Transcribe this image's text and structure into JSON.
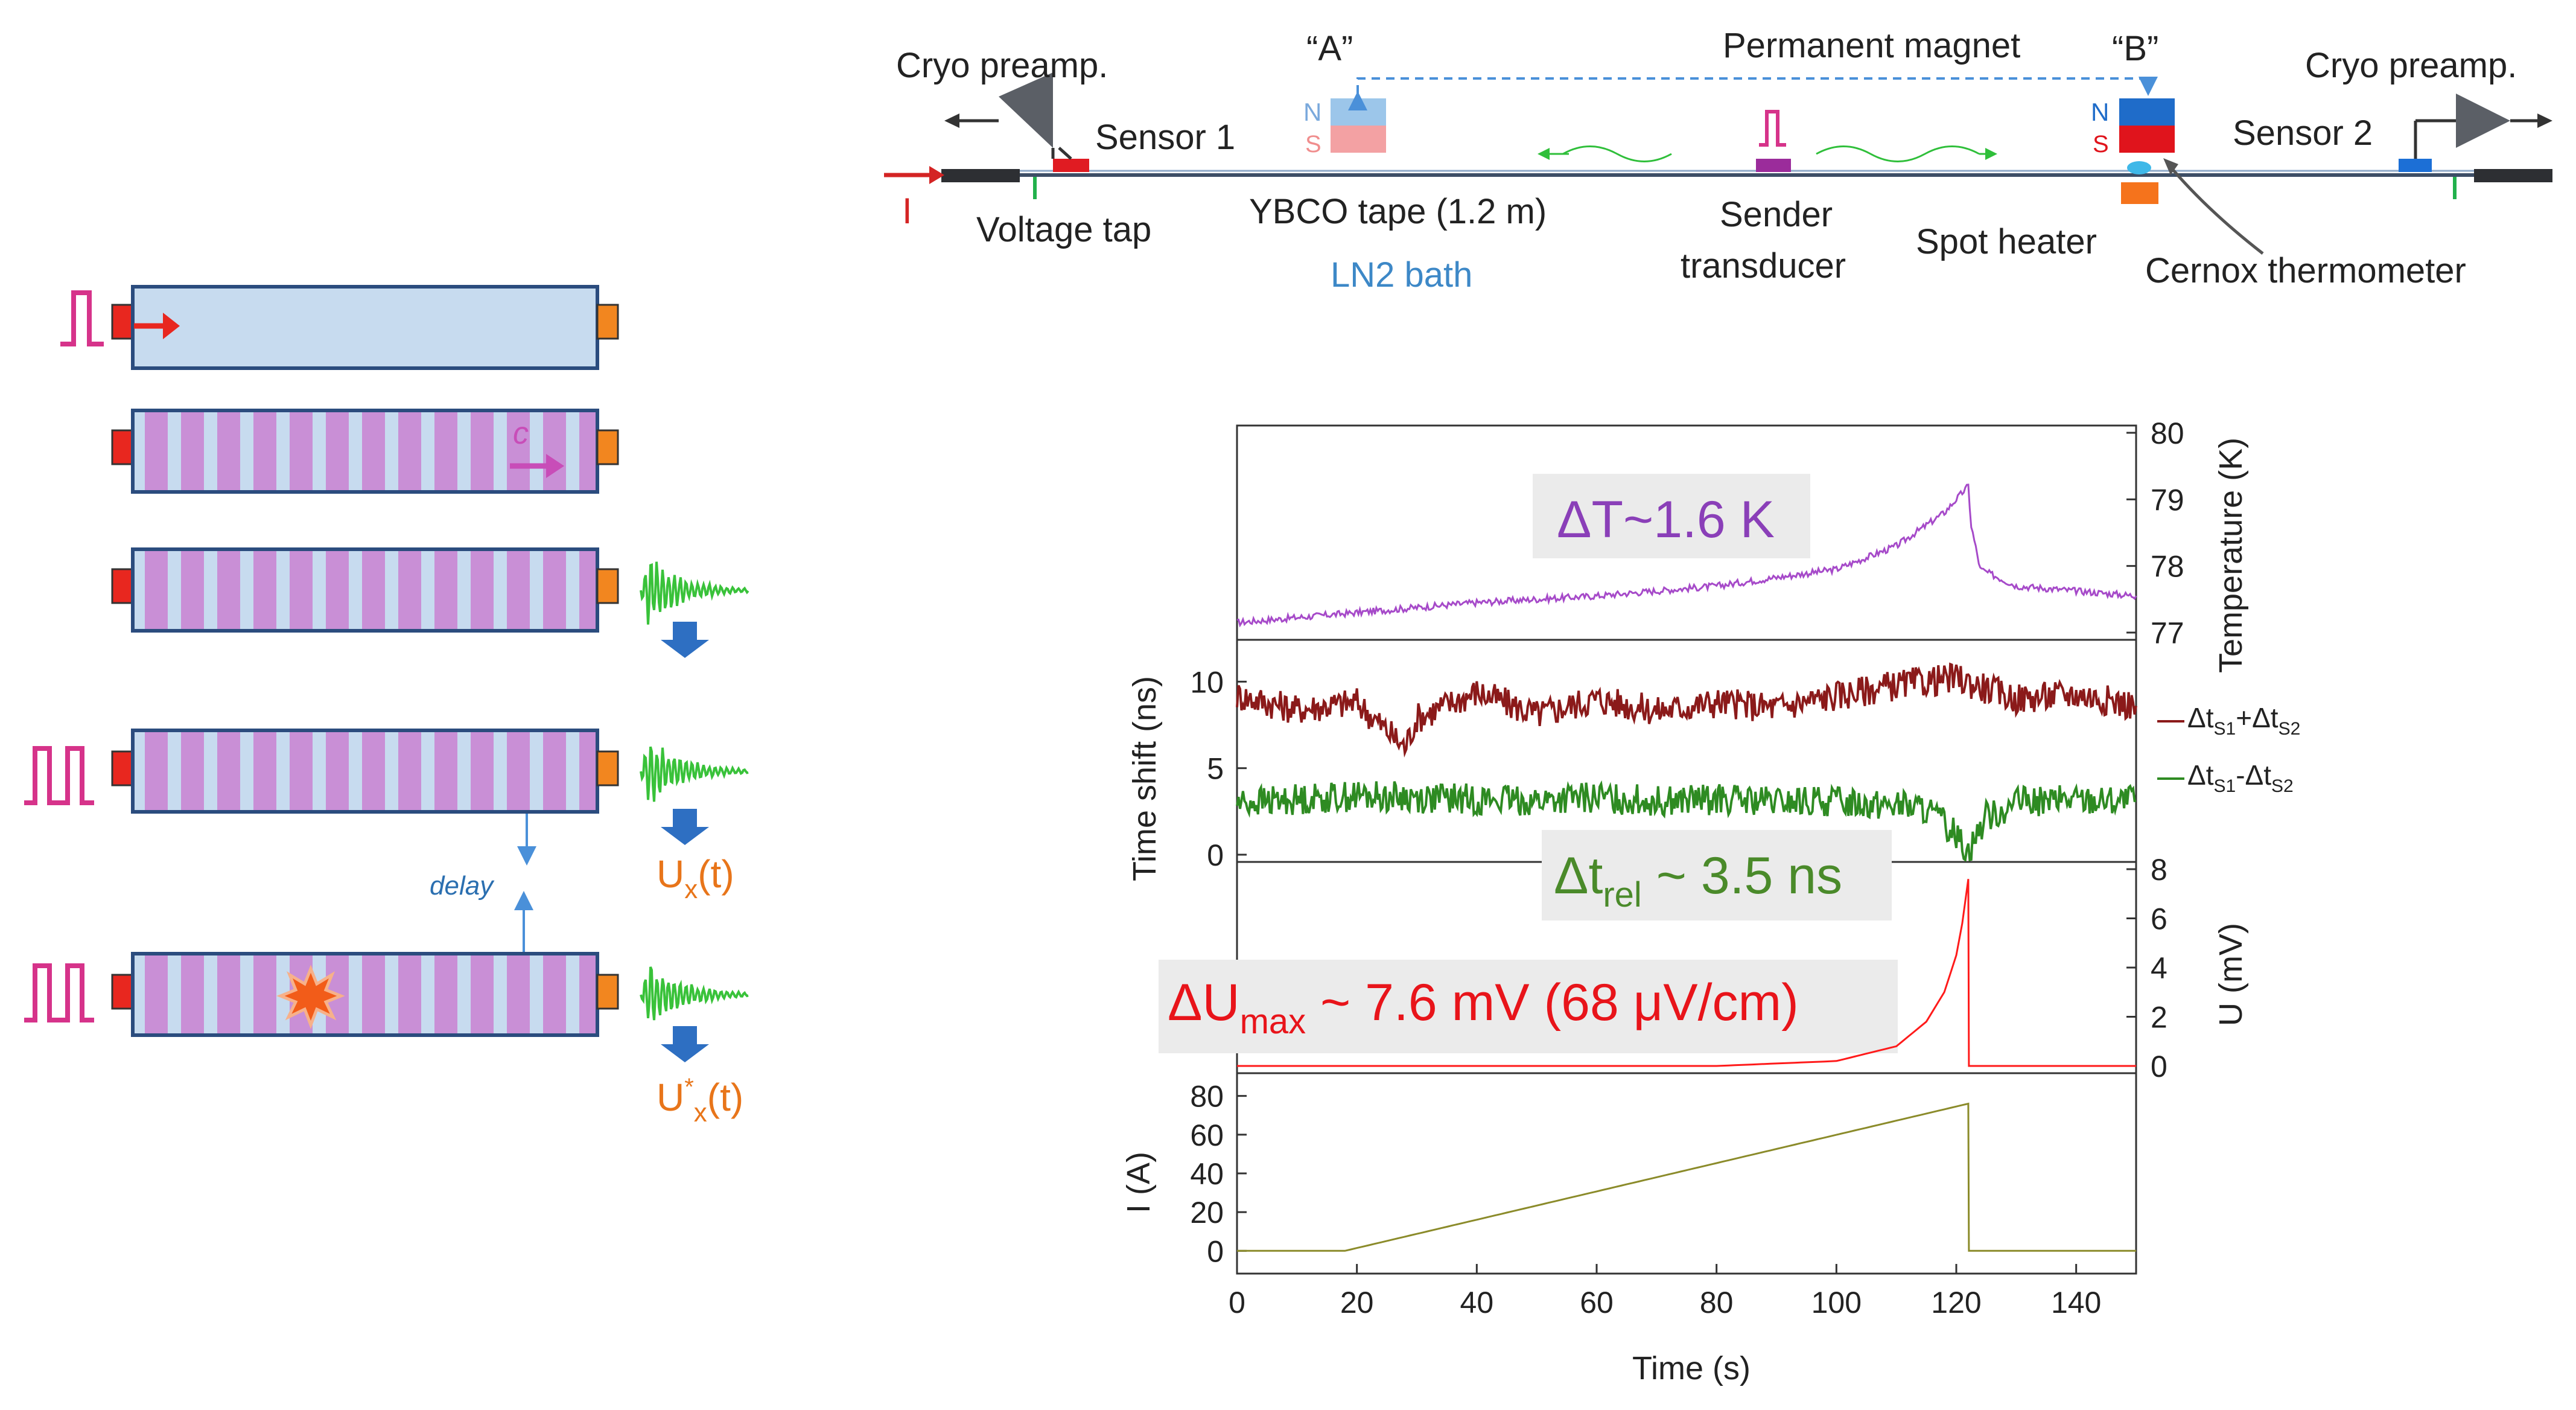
{
  "setup": {
    "cryo_preamp_left": "Cryo preamp.",
    "cryo_preamp_right": "Cryo preamp.",
    "sensor1": "Sensor 1",
    "sensor2": "Sensor 2",
    "magnet_a_label": "“A”",
    "magnet_b_label": "“B”",
    "permanent_magnet": "Permanent magnet",
    "pole_n": "N",
    "pole_s": "S",
    "current_label": "I",
    "voltage_tap": "Voltage tap",
    "tape_label": "YBCO tape (1.2 m)",
    "bath_label": "LN2 bath",
    "sender_line1": "Sender",
    "sender_line2": "transducer",
    "spot_heater": "Spot heater",
    "cernox": "Cernox thermometer"
  },
  "schematic": {
    "wave_speed_label": "c",
    "delay_label": "delay",
    "ux_main": "U",
    "ux_sub": "x",
    "ux_tail": "(t)",
    "uxstar_main": "U",
    "uxstar_sup": "*",
    "uxstar_sub": "x",
    "uxstar_tail": "(t)"
  },
  "chart_data": [
    {
      "type": "line",
      "panel": "temperature",
      "ylabel": "Temperature (K)",
      "ylim": [
        77,
        80
      ],
      "yticks": [
        "77",
        "78",
        "79",
        "80"
      ],
      "annotation": "ΔT~1.6 K",
      "series": [
        {
          "name": "Temperature",
          "color": "#a64ac9",
          "x": [
            0,
            20,
            40,
            60,
            80,
            100,
            110,
            118,
            122,
            122.5,
            124,
            130,
            150
          ],
          "y": [
            77.15,
            77.3,
            77.45,
            77.55,
            77.7,
            77.95,
            78.3,
            78.8,
            79.2,
            78.6,
            77.95,
            77.7,
            77.55
          ]
        }
      ]
    },
    {
      "type": "line",
      "panel": "time_shift",
      "ylabel": "Time shift (ns)",
      "ylim": [
        0,
        12
      ],
      "yticks": [
        "0",
        "5",
        "10"
      ],
      "annotation_main": "Δt",
      "annotation_sub": "rel",
      "annotation_tail": " ~ 3.5 ns",
      "legend": [
        {
          "main": "Δt",
          "sub1": "S1",
          "op": "+Δt",
          "sub2": "S2",
          "color": "#8b1a1a"
        },
        {
          "main": "Δt",
          "sub1": "S1",
          "op": "-Δt",
          "sub2": "S2",
          "color": "#2e8b22"
        }
      ],
      "series": [
        {
          "name": "Δt_S1+Δt_S2",
          "color": "#8b1a1a",
          "x": [
            0,
            10,
            20,
            28,
            30,
            40,
            50,
            60,
            70,
            80,
            90,
            100,
            110,
            120,
            130,
            140,
            150
          ],
          "y": [
            9.2,
            8.4,
            8.8,
            6.2,
            7.9,
            9.4,
            8.1,
            9.0,
            8.3,
            8.8,
            8.5,
            9.2,
            9.8,
            10.2,
            9.0,
            9.3,
            8.6
          ]
        },
        {
          "name": "Δt_S1-Δt_S2",
          "color": "#2e8b22",
          "x": [
            0,
            10,
            20,
            30,
            40,
            50,
            60,
            70,
            80,
            90,
            100,
            110,
            115,
            120,
            122,
            125,
            130,
            140,
            150
          ],
          "y": [
            3.0,
            3.2,
            3.4,
            3.3,
            3.2,
            3.1,
            3.3,
            3.1,
            3.2,
            3.0,
            3.1,
            2.9,
            2.6,
            1.2,
            0.3,
            2.2,
            3.0,
            3.2,
            3.1
          ]
        }
      ]
    },
    {
      "type": "line",
      "panel": "voltage",
      "ylabel": "U (mV)",
      "ylim": [
        0,
        8
      ],
      "yticks": [
        "0",
        "2",
        "4",
        "6",
        "8"
      ],
      "annotation_main": "ΔU",
      "annotation_sub": "max",
      "annotation_tail": " ~ 7.6 mV (68 μV/cm)",
      "series": [
        {
          "name": "U",
          "color": "#ff1a1a",
          "x": [
            0,
            80,
            100,
            110,
            115,
            118,
            120,
            121,
            122,
            122.1,
            150
          ],
          "y": [
            0,
            0,
            0.2,
            0.8,
            1.8,
            3.0,
            4.5,
            5.8,
            7.6,
            0,
            0
          ]
        }
      ]
    },
    {
      "type": "line",
      "panel": "current",
      "ylabel": "I (A)",
      "xlabel": "Time (s)",
      "xlim": [
        0,
        150
      ],
      "ylim": [
        -8,
        88
      ],
      "xticks": [
        "0",
        "20",
        "40",
        "60",
        "80",
        "100",
        "120",
        "140"
      ],
      "yticks": [
        "0",
        "20",
        "40",
        "60",
        "80"
      ],
      "series": [
        {
          "name": "I",
          "color": "#8b8b2a",
          "x": [
            0,
            18,
            122,
            122.1,
            150
          ],
          "y": [
            0,
            0,
            76,
            0,
            0
          ]
        }
      ]
    }
  ]
}
